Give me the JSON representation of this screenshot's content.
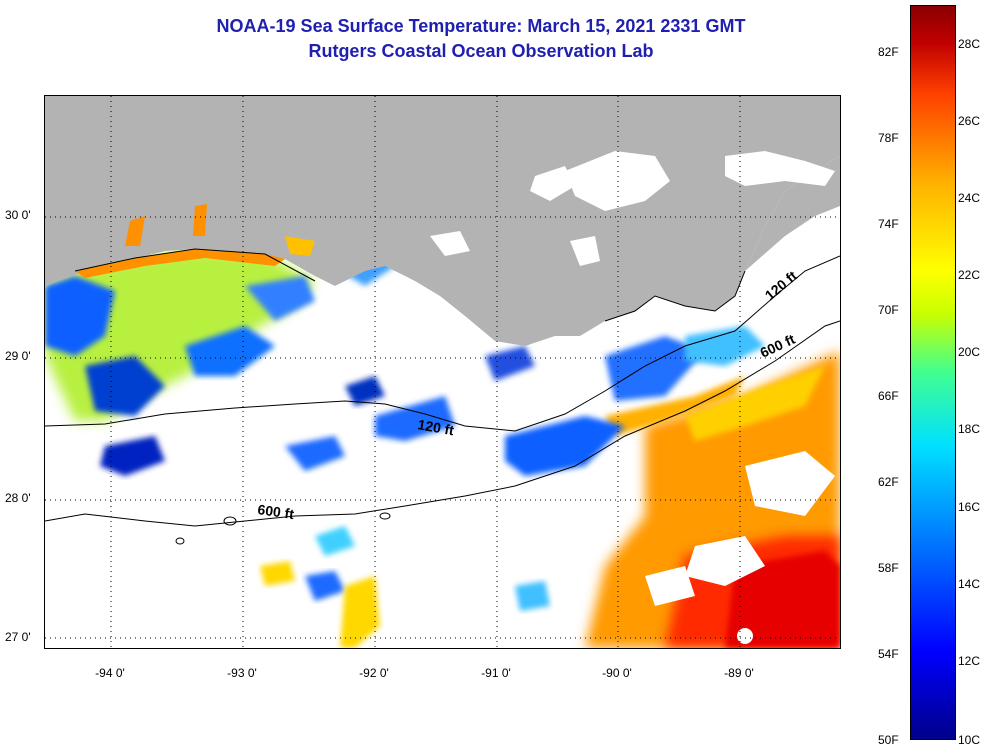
{
  "title": {
    "line1": "NOAA-19 Sea Surface Temperature:  March 15, 2021 2331 GMT",
    "line2": "Rutgers Coastal Ocean Observation Lab"
  },
  "map": {
    "lat_labels": [
      "30 0'",
      "29 0'",
      "28 0'",
      "27 0'"
    ],
    "lon_labels": [
      "-94 0'",
      "-93 0'",
      "-92 0'",
      "-91 0'",
      "-90 0'",
      "-89 0'"
    ],
    "isobath_labels": {
      "shallow_west": "120 ft",
      "shallow_east": "120 ft",
      "deep_west": "600 ft",
      "deep_east": "600 ft"
    },
    "colors": {
      "land": "#b3b3b3",
      "cloud": "#ffffff",
      "contour": "#000000"
    }
  },
  "colorbar": {
    "fahrenheit": [
      "82F",
      "78F",
      "74F",
      "70F",
      "66F",
      "62F",
      "58F",
      "54F",
      "50F"
    ],
    "celsius": [
      "28C",
      "26C",
      "24C",
      "22C",
      "20C",
      "18C",
      "16C",
      "14C",
      "12C",
      "10C"
    ],
    "colors": [
      "#00008a",
      "#0000ff",
      "#0080ff",
      "#00e0ff",
      "#40ff90",
      "#ffff00",
      "#ffb000",
      "#ff4000",
      "#8a0000"
    ]
  }
}
